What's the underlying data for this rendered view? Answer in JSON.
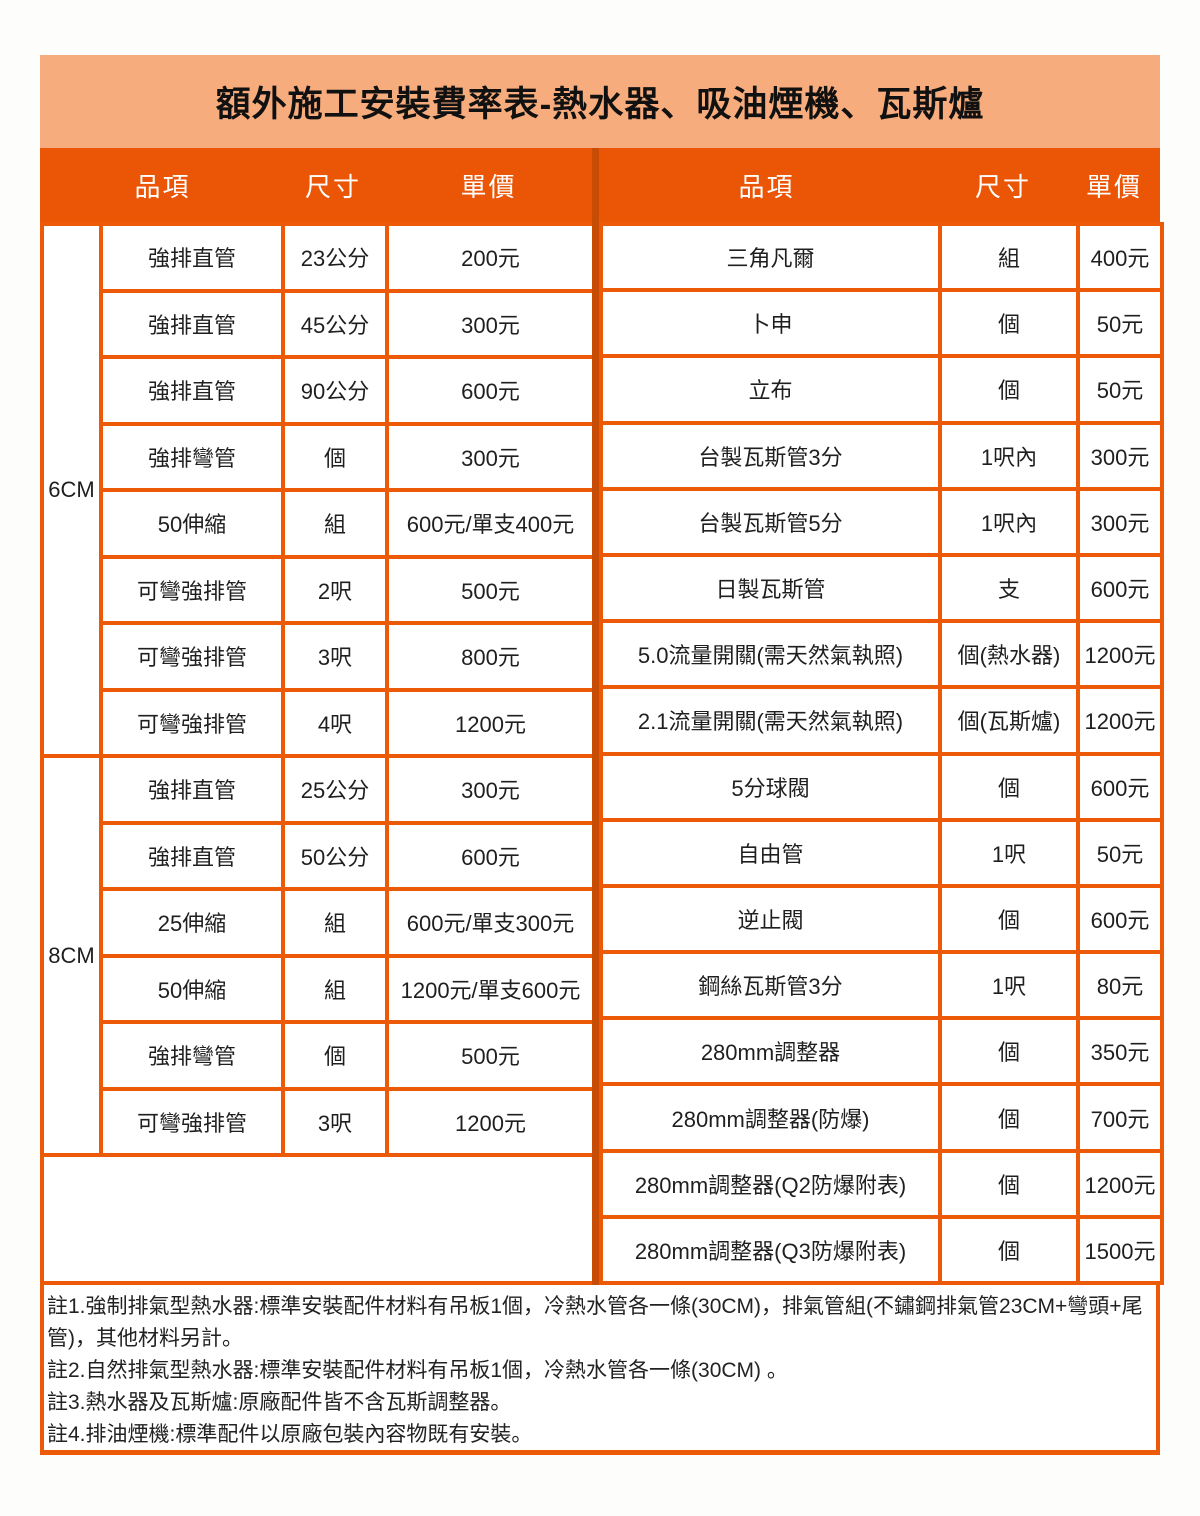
{
  "title": "額外施工安裝費率表-熱水器、吸油煙機、瓦斯爐",
  "header": {
    "item": "品項",
    "size": "尺寸",
    "price": "單價"
  },
  "left_table": {
    "groups": [
      {
        "label": "6CM",
        "start": 0,
        "span": 8
      },
      {
        "label": "8CM",
        "start": 8,
        "span": 6
      }
    ],
    "rows": [
      {
        "item": "強排直管",
        "size": "23公分",
        "price": "200元"
      },
      {
        "item": "強排直管",
        "size": "45公分",
        "price": "300元"
      },
      {
        "item": "強排直管",
        "size": "90公分",
        "price": "600元"
      },
      {
        "item": "強排彎管",
        "size": "個",
        "price": "300元"
      },
      {
        "item": "50伸縮",
        "size": "組",
        "price": "600元/單支400元"
      },
      {
        "item": "可彎強排管",
        "size": "2呎",
        "price": "500元"
      },
      {
        "item": "可彎強排管",
        "size": "3呎",
        "price": "800元"
      },
      {
        "item": "可彎強排管",
        "size": "4呎",
        "price": "1200元"
      },
      {
        "item": "強排直管",
        "size": "25公分",
        "price": "300元"
      },
      {
        "item": "強排直管",
        "size": "50公分",
        "price": "600元"
      },
      {
        "item": "25伸縮",
        "size": "組",
        "price": "600元/單支300元"
      },
      {
        "item": "50伸縮",
        "size": "組",
        "price": "1200元/單支600元"
      },
      {
        "item": "強排彎管",
        "size": "個",
        "price": "500元"
      },
      {
        "item": "可彎強排管",
        "size": "3呎",
        "price": "1200元"
      }
    ]
  },
  "right_table": {
    "rows": [
      {
        "item": "三角凡爾",
        "size": "組",
        "price": "400元"
      },
      {
        "item": "卜申",
        "size": "個",
        "price": "50元"
      },
      {
        "item": "立布",
        "size": "個",
        "price": "50元"
      },
      {
        "item": "台製瓦斯管3分",
        "size": "1呎內",
        "price": "300元"
      },
      {
        "item": "台製瓦斯管5分",
        "size": "1呎內",
        "price": "300元"
      },
      {
        "item": "日製瓦斯管",
        "size": "支",
        "price": "600元"
      },
      {
        "item": "5.0流量開關(需天然氣執照)",
        "size": "個(熱水器)",
        "price": "1200元"
      },
      {
        "item": "2.1流量開關(需天然氣執照)",
        "size": "個(瓦斯爐)",
        "price": "1200元"
      },
      {
        "item": "5分球閥",
        "size": "個",
        "price": "600元"
      },
      {
        "item": "自由管",
        "size": "1呎",
        "price": "50元"
      },
      {
        "item": "逆止閥",
        "size": "個",
        "price": "600元"
      },
      {
        "item": "鋼絲瓦斯管3分",
        "size": "1呎",
        "price": "80元"
      },
      {
        "item": "280mm調整器",
        "size": "個",
        "price": "350元"
      },
      {
        "item": "280mm調整器(防爆)",
        "size": "個",
        "price": "700元"
      },
      {
        "item": "280mm調整器(Q2防爆附表)",
        "size": "個",
        "price": "1200元"
      },
      {
        "item": "280mm調整器(Q3防爆附表)",
        "size": "個",
        "price": "1500元"
      }
    ]
  },
  "notes": [
    "註1.強制排氣型熱水器:標準安裝配件材料有吊板1個，冷熱水管各一條(30CM)，排氣管組(不鏽鋼排氣管23CM+彎頭+尾管)，其他材料另計。",
    "註2.自然排氣型熱水器:標準安裝配件材料有吊板1個，冷熱水管各一條(30CM) 。",
    "註3.熱水器及瓦斯爐:原廠配件皆不含瓦斯調整器。",
    "註4.排油煙機:標準配件以原廠包裝內容物既有安裝。"
  ],
  "colors": {
    "title_bg": "#f6ac7c",
    "header_bg": "#ea5506",
    "grid_border": "#ec5a08",
    "center_divider": "#c74d04",
    "header_text": "#ffffff",
    "body_text": "#1f1f1f"
  }
}
